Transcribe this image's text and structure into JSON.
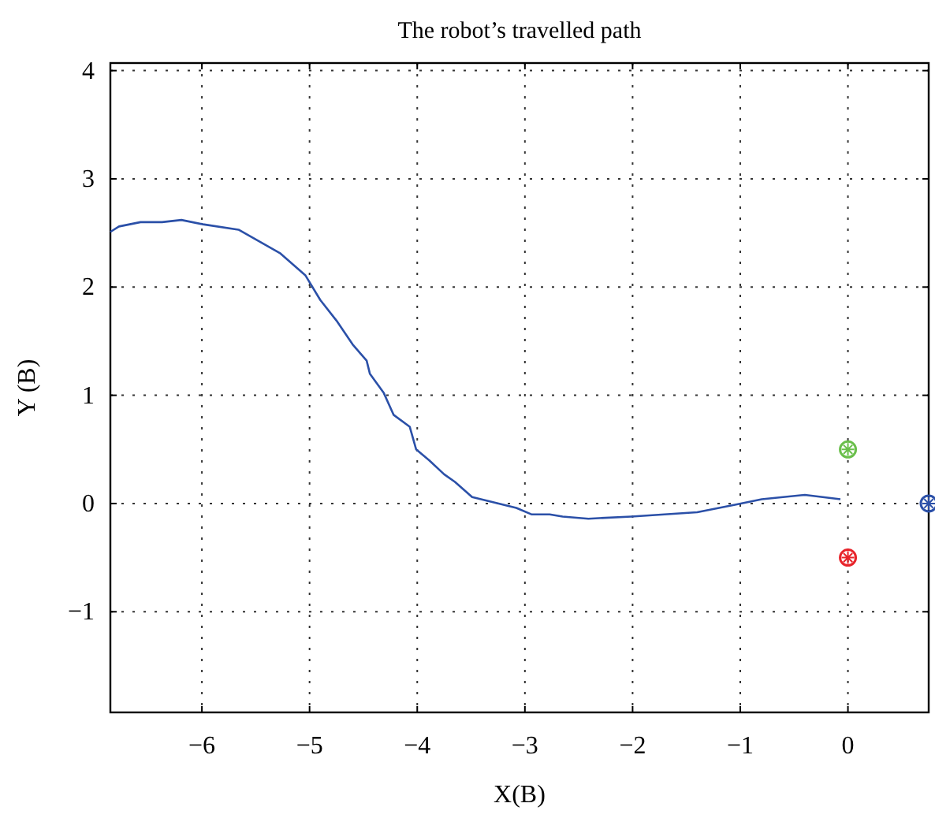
{
  "chart_data": {
    "type": "line",
    "title": "The robot’s travelled path",
    "xlabel": "X(B)",
    "ylabel": "Y (B)",
    "xlim": [
      -6.85,
      0.75
    ],
    "xticks": [
      -6,
      -5,
      -4,
      -3,
      -2,
      -1,
      0
    ],
    "ylim": [
      -1.93,
      4.07
    ],
    "yticks": [
      -1,
      0,
      1,
      2,
      3,
      4
    ],
    "grid": true,
    "line_style": "solid",
    "series": [
      {
        "color": "#2b50a8",
        "x": [
          -6.85,
          -6.77,
          -6.57,
          -6.37,
          -6.19,
          -5.99,
          -5.66,
          -5.27,
          -5.04,
          -4.9,
          -4.75,
          -4.6,
          -4.47,
          -4.44,
          -4.31,
          -4.22,
          -4.07,
          -4.01,
          -3.89,
          -3.75,
          -3.65,
          -3.49,
          -3.08,
          -2.94,
          -2.77,
          -2.65,
          -2.41,
          -2.01,
          -1.4,
          -1.04,
          -0.8,
          -0.4,
          -0.07
        ],
        "values": [
          2.51,
          2.56,
          2.6,
          2.6,
          2.62,
          2.58,
          2.53,
          2.31,
          2.11,
          1.88,
          1.69,
          1.47,
          1.32,
          1.2,
          1.02,
          0.82,
          0.71,
          0.5,
          0.4,
          0.27,
          0.2,
          0.06,
          -0.04,
          -0.1,
          -0.1,
          -0.12,
          -0.14,
          -0.12,
          -0.08,
          -0.01,
          0.04,
          0.08,
          0.04
        ]
      },
      {
        "type": "scatter",
        "marker": "circle",
        "color": "#6abf4b",
        "x": [
          0
        ],
        "values": [
          0.5
        ]
      },
      {
        "type": "scatter",
        "marker": "circle",
        "color": "#e8242b",
        "x": [
          0
        ],
        "values": [
          -0.5
        ]
      },
      {
        "type": "scatter",
        "marker": "circle",
        "color": "#2b50a8",
        "x": [
          0.75
        ],
        "values": [
          0
        ]
      }
    ]
  }
}
